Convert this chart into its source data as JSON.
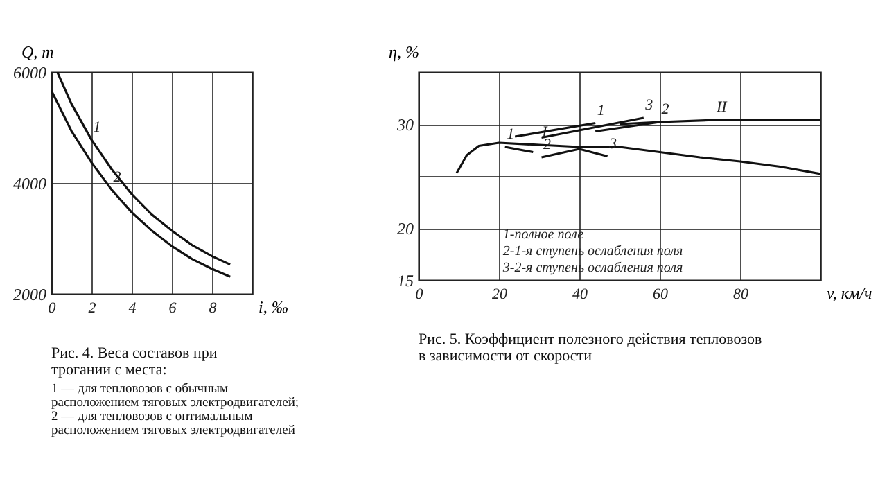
{
  "chart_data": [
    {
      "type": "line",
      "title": "Рис. 4. Веса составов при трогании с места:",
      "subtitle": "1 — для тепловозов с обычным расположением тяговых электродвигателей; 2 — для тепловозов с оптимальным расположением тяговых электродвигателей",
      "xlabel": "i, ‰",
      "ylabel": "Q, т",
      "series": [
        {
          "color": "#111111",
          "x": [
            0.3,
            1,
            2,
            3,
            4,
            5,
            6,
            7,
            8,
            8.9
          ],
          "values": [
            6000,
            5430,
            4780,
            4250,
            3800,
            3430,
            3140,
            2880,
            2680,
            2530
          ]
        },
        {
          "color": "#111111",
          "x": [
            0,
            1,
            2,
            3,
            4,
            5,
            6,
            7,
            8,
            8.9
          ],
          "values": [
            5670,
            4940,
            4370,
            3880,
            3470,
            3140,
            2860,
            2630,
            2450,
            2310
          ]
        }
      ],
      "annotations": [
        {
          "text": "1",
          "x": 2,
          "y": 4780
        },
        {
          "text": "2",
          "x": 3,
          "y": 3880
        }
      ],
      "xlim": [
        0,
        10
      ],
      "ylim": [
        2000,
        6000
      ],
      "xticks": [
        0,
        2,
        4,
        6,
        8
      ],
      "yticks": [
        2000,
        4000,
        6000
      ],
      "grid": true
    },
    {
      "type": "line",
      "title": "Рис. 5. Коэффициент полезного действия тепловозов в зависимости от скорости",
      "xlabel": "v, км/ч",
      "ylabel": "η, %",
      "series": [
        {
          "color": "#111111",
          "x": [
            9.5,
            12,
            15,
            20,
            30,
            40,
            50,
            60,
            70,
            80,
            90,
            100
          ],
          "values": [
            25.3,
            27.0,
            27.9,
            28.2,
            28.0,
            27.8,
            27.8,
            27.3,
            26.8,
            26.4,
            25.9,
            25.2
          ]
        },
        {
          "color": "#111111",
          "x": [
            21.5,
            28.5
          ],
          "values": [
            27.8,
            27.3
          ]
        },
        {
          "color": "#111111",
          "x": [
            30.6,
            40,
            47
          ],
          "values": [
            26.8,
            27.6,
            26.9
          ]
        },
        {
          "color": "#111111",
          "x": [
            24,
            44
          ],
          "values": [
            28.8,
            30.1
          ]
        },
        {
          "color": "#111111",
          "x": [
            30.6,
            56
          ],
          "values": [
            28.7,
            30.6
          ]
        },
        {
          "color": "#111111",
          "x": [
            44,
            60
          ],
          "values": [
            29.3,
            30.2
          ]
        },
        {
          "color": "#111111",
          "x": [
            50,
            60,
            74,
            100
          ],
          "values": [
            30.0,
            30.2,
            30.4,
            30.4
          ]
        }
      ],
      "annotations": [
        "1-полное поле",
        "2-1-я ступень ослабления поля",
        "3-2-я ступень ослабления поля",
        {
          "text": "1",
          "x": 21.5,
          "y": 27.8
        },
        {
          "text": "2",
          "x": 30.6,
          "y": 26.8
        },
        {
          "text": "3",
          "x": 47,
          "y": 26.9
        },
        {
          "text": "I",
          "x": 30,
          "y": 28.0
        },
        {
          "text": "1",
          "x": 44,
          "y": 30.1
        },
        {
          "text": "2",
          "x": 60,
          "y": 30.2
        },
        {
          "text": "3",
          "x": 56,
          "y": 30.6
        },
        {
          "text": "II",
          "x": 74,
          "y": 30.4
        }
      ],
      "xlim": [
        0,
        100
      ],
      "ylim": [
        15,
        35
      ],
      "xticks": [
        0,
        20,
        40,
        60,
        80
      ],
      "yticks": [
        15,
        20,
        {
          "value": 25,
          "label": null
        },
        30
      ],
      "grid": true
    }
  ]
}
